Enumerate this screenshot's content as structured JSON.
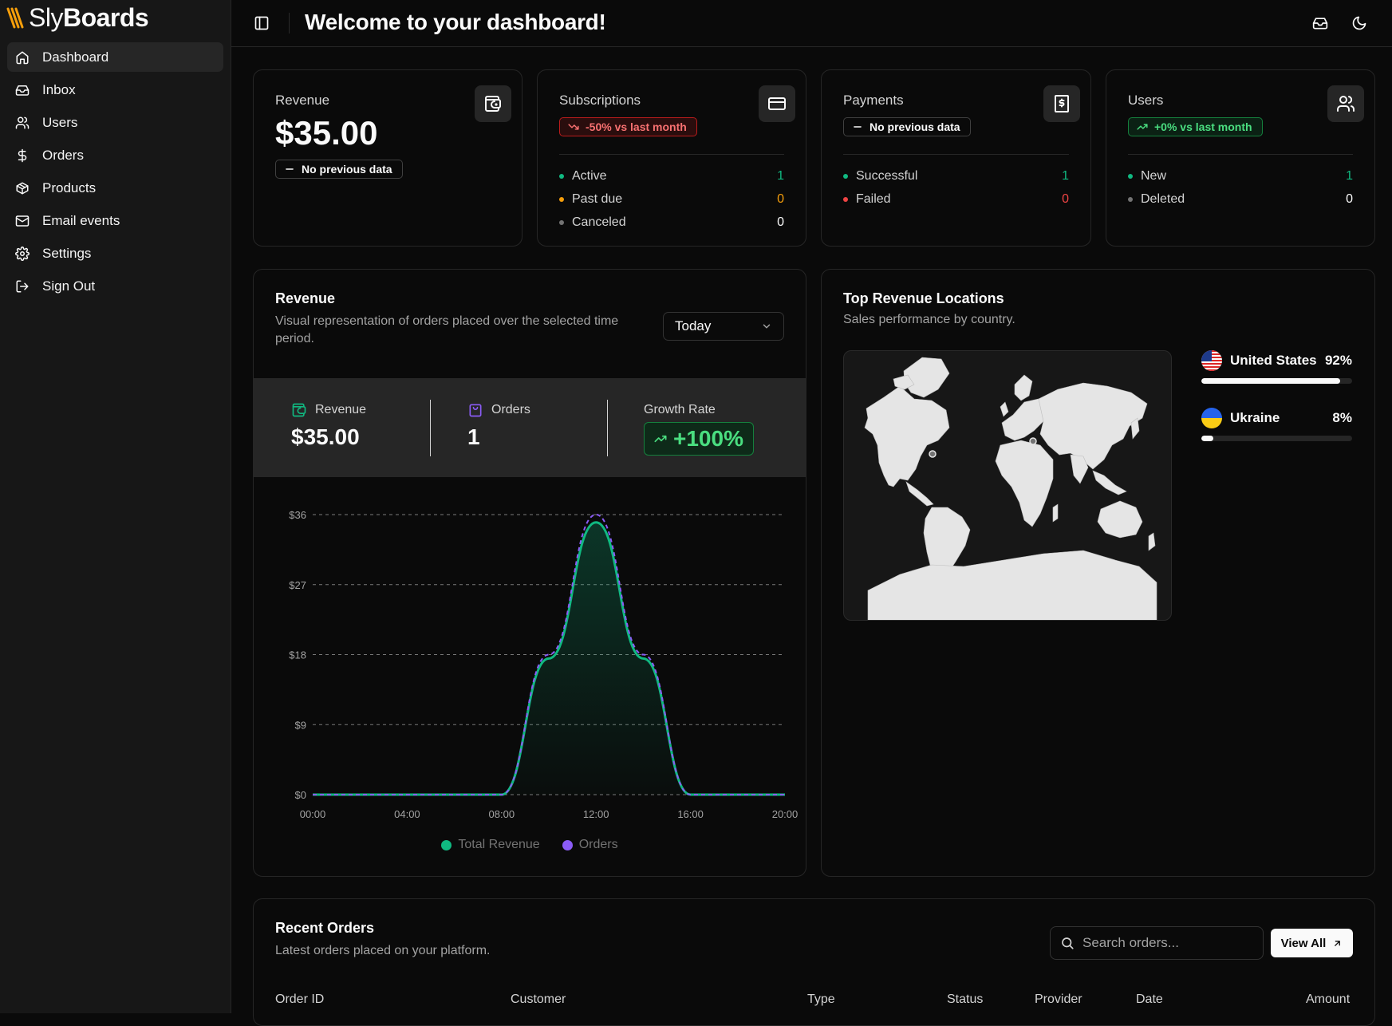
{
  "brand": {
    "name_light": "Sly",
    "name_bold": "Boards"
  },
  "sidebar": {
    "items": [
      {
        "label": "Dashboard",
        "icon": "home-icon",
        "active": true
      },
      {
        "label": "Inbox",
        "icon": "inbox-icon"
      },
      {
        "label": "Users",
        "icon": "users-icon"
      },
      {
        "label": "Orders",
        "icon": "dollar-icon"
      },
      {
        "label": "Products",
        "icon": "package-icon"
      },
      {
        "label": "Email events",
        "icon": "mail-icon"
      },
      {
        "label": "Settings",
        "icon": "gear-icon"
      },
      {
        "label": "Sign Out",
        "icon": "sign-out-icon"
      }
    ]
  },
  "header": {
    "title": "Welcome to your dashboard!"
  },
  "stats": {
    "revenue": {
      "label": "Revenue",
      "value": "$35.00",
      "badge": "No previous data"
    },
    "subscriptions": {
      "label": "Subscriptions",
      "badge": "-50% vs last month",
      "rows": [
        {
          "label": "Active",
          "value": "1",
          "color": "#10b981"
        },
        {
          "label": "Past due",
          "value": "0",
          "color": "#f59e0b"
        },
        {
          "label": "Canceled",
          "value": "0",
          "color": "#737373"
        }
      ]
    },
    "payments": {
      "label": "Payments",
      "badge": "No previous data",
      "rows": [
        {
          "label": "Successful",
          "value": "1",
          "color": "#10b981"
        },
        {
          "label": "Failed",
          "value": "0",
          "color": "#ef4444"
        }
      ]
    },
    "users": {
      "label": "Users",
      "badge": "+0% vs last month",
      "rows": [
        {
          "label": "New",
          "value": "1",
          "color": "#10b981"
        },
        {
          "label": "Deleted",
          "value": "0",
          "color": "#737373"
        }
      ]
    }
  },
  "revenue_chart": {
    "title": "Revenue",
    "subtitle": "Visual representation of orders placed over the selected time period.",
    "period": "Today",
    "kpis": {
      "revenue_label": "Revenue",
      "revenue_value": "$35.00",
      "orders_label": "Orders",
      "orders_value": "1",
      "growth_label": "Growth Rate",
      "growth_value": "+100%"
    },
    "colors": {
      "revenue": "#10b981",
      "orders": "#8b5cf6"
    }
  },
  "chart_data": {
    "type": "area",
    "x": [
      "00:00",
      "02:00",
      "04:00",
      "06:00",
      "08:00",
      "10:00",
      "12:00",
      "14:00",
      "16:00",
      "18:00",
      "20:00"
    ],
    "x_ticks": [
      "00:00",
      "04:00",
      "08:00",
      "12:00",
      "16:00",
      "20:00"
    ],
    "series": [
      {
        "name": "Total Revenue",
        "values": [
          0,
          0,
          0,
          0,
          0,
          17.5,
          35,
          17.5,
          0,
          0,
          0
        ]
      },
      {
        "name": "Orders",
        "values": [
          0,
          0,
          0,
          0,
          0,
          18,
          36,
          18,
          0,
          0,
          0
        ]
      }
    ],
    "y_ticks": [
      "$0",
      "$9",
      "$18",
      "$27",
      "$36"
    ],
    "ylim": [
      0,
      36
    ],
    "grid": true,
    "legend": "bottom"
  },
  "locations": {
    "title": "Top Revenue Locations",
    "subtitle": "Sales performance by country.",
    "items": [
      {
        "country": "United States",
        "percent": "92%",
        "share": 0.92
      },
      {
        "country": "Ukraine",
        "percent": "8%",
        "share": 0.08
      }
    ]
  },
  "orders": {
    "title": "Recent Orders",
    "subtitle": "Latest orders placed on your platform.",
    "search_placeholder": "Search orders...",
    "view_all": "View All",
    "columns": [
      "Order ID",
      "Customer",
      "Type",
      "Status",
      "Provider",
      "Date",
      "Amount"
    ]
  }
}
